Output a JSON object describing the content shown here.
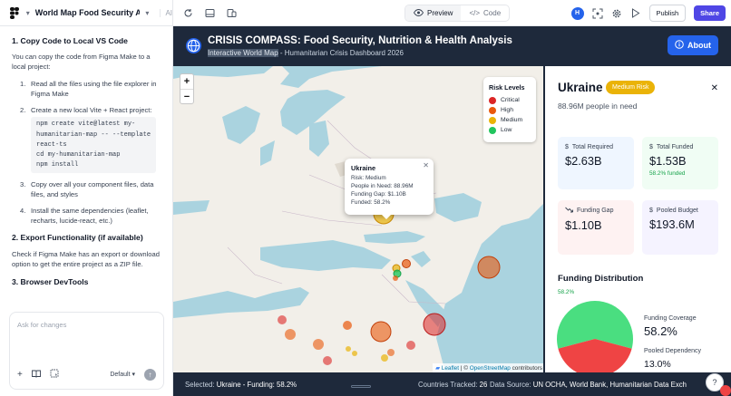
{
  "topbar": {
    "project_title": "World Map Food Security Analy...",
    "ai_label": "AI",
    "preview_label": "Preview",
    "code_label": "Code",
    "avatar_initial": "H",
    "publish_label": "Publish",
    "share_label": "Share"
  },
  "left": {
    "h1": "1. Copy Code to Local VS Code",
    "p1": "You can copy the code from Figma Make to a local project:",
    "steps": [
      {
        "num": "1.",
        "text": "Read all the files using the file explorer in Figma Make"
      },
      {
        "num": "2.",
        "text": "Create a new local Vite + React project:"
      },
      {
        "num": "3.",
        "text": "Copy over all your component files, data files, and styles"
      },
      {
        "num": "4.",
        "text": "Install the same dependencies (leaflet, recharts, lucide-react, etc.)"
      }
    ],
    "code": "npm create vite@latest my-\nhumanitarian-map -- --template\nreact-ts\ncd my-humanitarian-map\nnpm install",
    "h2": "2. Export Functionality (if available)",
    "p2": "Check if Figma Make has an export or download option to get the entire project as a ZIP file.",
    "h3": "3. Browser DevTools",
    "chat_placeholder": "Ask for changes",
    "model_label": "Default"
  },
  "app": {
    "title": "CRISIS COMPASS: Food Security, Nutrition & Health Analysis",
    "subtitle_highlight": "Interactive World Map",
    "subtitle_rest": " - Humanitarian Crisis Dashboard 2026",
    "about_label": "About"
  },
  "map": {
    "legend_title": "Risk Levels",
    "legend": [
      {
        "label": "Critical",
        "color": "#dc2626"
      },
      {
        "label": "High",
        "color": "#ea580c"
      },
      {
        "label": "Medium",
        "color": "#eab308"
      },
      {
        "label": "Low",
        "color": "#22c55e"
      }
    ],
    "popup": {
      "title": "Ukraine",
      "lines": [
        "Risk: Medium",
        "People in Need: 88.96M",
        "Funding Gap: $1.10B",
        "Funded: 58.2%"
      ]
    },
    "attribution_leaflet": "Leaflet",
    "attribution_sep": " | © ",
    "attribution_osm": "OpenStreetMap",
    "attribution_rest": " contributors"
  },
  "panel": {
    "country": "Ukraine",
    "risk_badge": "Medium Risk",
    "people_in_need": "88.96M people in need",
    "cards": {
      "required_label": "Total Required",
      "required_value": "$2.63B",
      "funded_label": "Total Funded",
      "funded_value": "$1.53B",
      "funded_sub": "58.2% funded",
      "gap_label": "Funding Gap",
      "gap_value": "$1.10B",
      "pooled_label": "Pooled Budget",
      "pooled_value": "$193.6M"
    },
    "distribution_title": "Funding Distribution",
    "distribution_pct": "58.2%",
    "coverage_label": "Funding Coverage",
    "coverage_value": "58.2%",
    "pooled_dep_label": "Pooled Dependency",
    "pooled_dep_value": "13.0%",
    "funded_fraction": 0.582
  },
  "status": {
    "selected_prefix": "Selected: ",
    "selected_value": "Ukraine - Funding: 58.2%",
    "tracked_prefix": "Countries Tracked: ",
    "tracked_value": "26",
    "source_prefix": "Data Source: ",
    "source_value": "UN OCHA, World Bank, Humanitarian Data Exch"
  },
  "colors": {
    "brand": "#4f46e5",
    "header_bg": "#1e293b",
    "about_btn": "#2563eb",
    "medium": "#eab308",
    "funded_green": "#16a34a"
  }
}
